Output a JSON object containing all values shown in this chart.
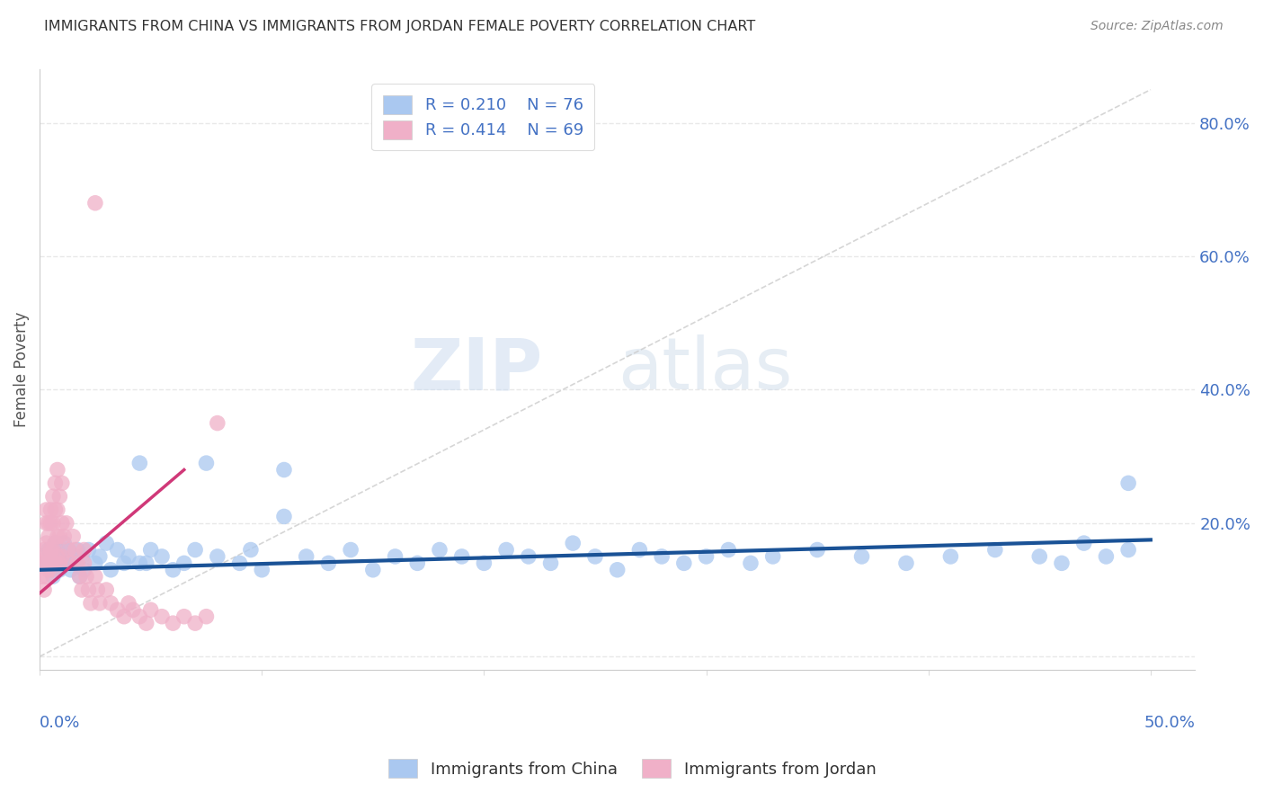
{
  "title": "IMMIGRANTS FROM CHINA VS IMMIGRANTS FROM JORDAN FEMALE POVERTY CORRELATION CHART",
  "source": "Source: ZipAtlas.com",
  "ylabel": "Female Poverty",
  "xlim": [
    0.0,
    0.52
  ],
  "ylim": [
    -0.02,
    0.88
  ],
  "china_R": 0.21,
  "china_N": 76,
  "jordan_R": 0.414,
  "jordan_N": 69,
  "china_color": "#aac8f0",
  "china_line_color": "#1a5296",
  "jordan_color": "#f0b0c8",
  "jordan_line_color": "#d03878",
  "watermark_zip": "ZIP",
  "watermark_atlas": "atlas",
  "background_color": "#ffffff",
  "grid_color": "#e8e8e8",
  "title_color": "#333333",
  "source_color": "#888888",
  "ytick_color": "#4472c4",
  "xtick_color": "#4472c4",
  "legend_text_color": "#4472c4",
  "china_x": [
    0.003,
    0.004,
    0.005,
    0.005,
    0.006,
    0.007,
    0.008,
    0.008,
    0.009,
    0.01,
    0.011,
    0.012,
    0.013,
    0.014,
    0.015,
    0.016,
    0.017,
    0.018,
    0.019,
    0.02,
    0.022,
    0.025,
    0.027,
    0.03,
    0.032,
    0.035,
    0.038,
    0.04,
    0.045,
    0.048,
    0.05,
    0.055,
    0.06,
    0.065,
    0.07,
    0.075,
    0.08,
    0.09,
    0.095,
    0.1,
    0.11,
    0.12,
    0.13,
    0.14,
    0.15,
    0.16,
    0.17,
    0.18,
    0.19,
    0.2,
    0.21,
    0.22,
    0.23,
    0.24,
    0.25,
    0.26,
    0.27,
    0.28,
    0.29,
    0.3,
    0.31,
    0.32,
    0.33,
    0.35,
    0.37,
    0.39,
    0.41,
    0.43,
    0.45,
    0.46,
    0.47,
    0.48,
    0.49,
    0.11,
    0.045,
    0.49
  ],
  "china_y": [
    0.14,
    0.16,
    0.13,
    0.15,
    0.12,
    0.17,
    0.14,
    0.16,
    0.13,
    0.15,
    0.17,
    0.14,
    0.16,
    0.13,
    0.15,
    0.14,
    0.16,
    0.12,
    0.15,
    0.13,
    0.16,
    0.14,
    0.15,
    0.17,
    0.13,
    0.16,
    0.14,
    0.15,
    0.29,
    0.14,
    0.16,
    0.15,
    0.13,
    0.14,
    0.16,
    0.29,
    0.15,
    0.14,
    0.16,
    0.13,
    0.28,
    0.15,
    0.14,
    0.16,
    0.13,
    0.15,
    0.14,
    0.16,
    0.15,
    0.14,
    0.16,
    0.15,
    0.14,
    0.17,
    0.15,
    0.13,
    0.16,
    0.15,
    0.14,
    0.15,
    0.16,
    0.14,
    0.15,
    0.16,
    0.15,
    0.14,
    0.15,
    0.16,
    0.15,
    0.14,
    0.17,
    0.15,
    0.16,
    0.21,
    0.14,
    0.26
  ],
  "jordan_x": [
    0.001,
    0.001,
    0.002,
    0.002,
    0.002,
    0.003,
    0.003,
    0.003,
    0.003,
    0.003,
    0.004,
    0.004,
    0.004,
    0.004,
    0.005,
    0.005,
    0.005,
    0.005,
    0.006,
    0.006,
    0.006,
    0.006,
    0.007,
    0.007,
    0.007,
    0.007,
    0.008,
    0.008,
    0.008,
    0.008,
    0.009,
    0.009,
    0.009,
    0.01,
    0.01,
    0.01,
    0.011,
    0.012,
    0.013,
    0.014,
    0.015,
    0.016,
    0.017,
    0.018,
    0.019,
    0.02,
    0.02,
    0.021,
    0.022,
    0.023,
    0.025,
    0.026,
    0.027,
    0.03,
    0.032,
    0.035,
    0.038,
    0.04,
    0.042,
    0.045,
    0.048,
    0.05,
    0.055,
    0.06,
    0.065,
    0.07,
    0.075,
    0.025,
    0.08
  ],
  "jordan_y": [
    0.12,
    0.15,
    0.1,
    0.14,
    0.16,
    0.12,
    0.14,
    0.17,
    0.2,
    0.22,
    0.13,
    0.15,
    0.18,
    0.2,
    0.14,
    0.16,
    0.2,
    0.22,
    0.13,
    0.16,
    0.2,
    0.24,
    0.14,
    0.17,
    0.22,
    0.26,
    0.15,
    0.18,
    0.22,
    0.28,
    0.14,
    0.18,
    0.24,
    0.15,
    0.2,
    0.26,
    0.18,
    0.2,
    0.16,
    0.14,
    0.18,
    0.16,
    0.14,
    0.12,
    0.1,
    0.14,
    0.16,
    0.12,
    0.1,
    0.08,
    0.12,
    0.1,
    0.08,
    0.1,
    0.08,
    0.07,
    0.06,
    0.08,
    0.07,
    0.06,
    0.05,
    0.07,
    0.06,
    0.05,
    0.06,
    0.05,
    0.06,
    0.68,
    0.35
  ]
}
